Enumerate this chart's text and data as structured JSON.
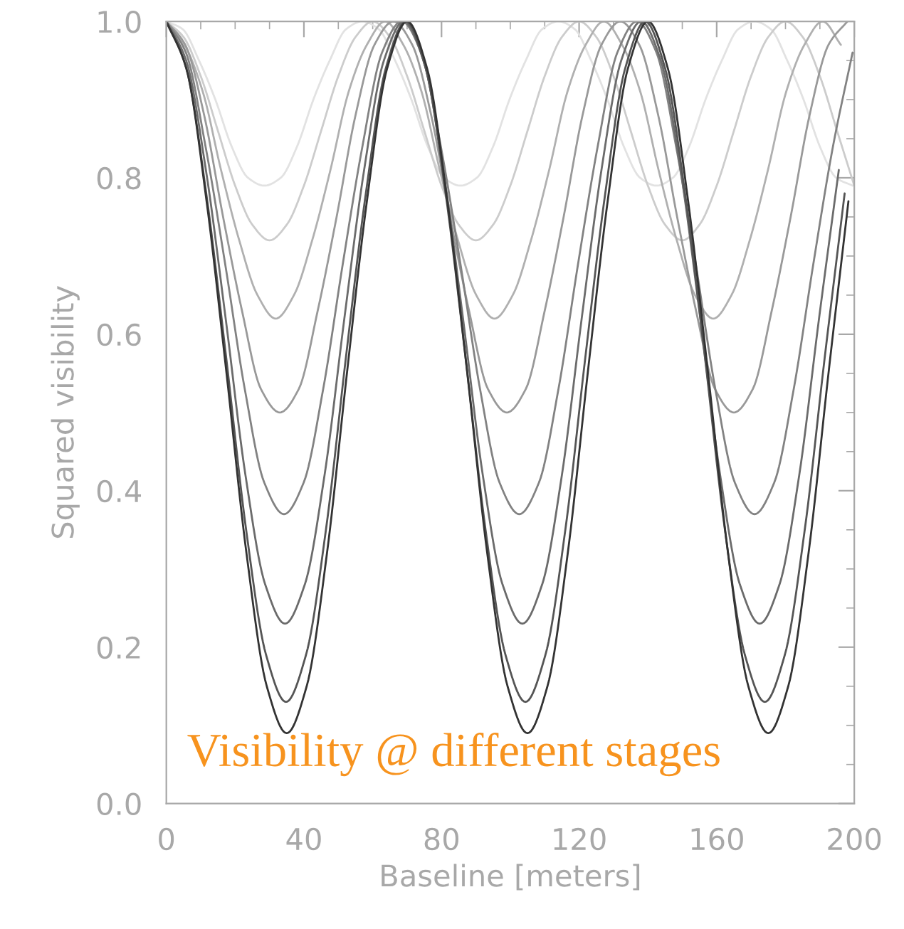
{
  "chart_data": {
    "type": "line",
    "xlabel": "Baseline [meters]",
    "ylabel": "Squared visibility",
    "annotations": [
      "Visibility @ different stages"
    ],
    "xlim": [
      0,
      200
    ],
    "ylim": [
      0,
      1.0
    ],
    "xticks": [
      0,
      40,
      80,
      120,
      160,
      200
    ],
    "yticks": [
      {
        "value": 0,
        "label": "0.0"
      },
      {
        "value": 0.2,
        "label": "0.2"
      },
      {
        "value": 0.4,
        "label": "0.4"
      },
      {
        "value": 0.6,
        "label": "0.6"
      },
      {
        "value": 0.8,
        "label": "0.8"
      },
      {
        "value": 1.0,
        "label": "1.0"
      }
    ],
    "grid": false,
    "marker": "none",
    "line_style": "solid",
    "series": [
      {
        "color": "#e2e2e2",
        "x": [
          0,
          4.75,
          9.5,
          14.25,
          19,
          23.75,
          28.5,
          33.25,
          38,
          42.75,
          47.5,
          52.25,
          57,
          61.75,
          66.5,
          71.25,
          76,
          80.75,
          85.5,
          90.25,
          95,
          99.75,
          104.5,
          109.25,
          114,
          118.75,
          123.5,
          128.25,
          133,
          137.75,
          142.5,
          147.25,
          152,
          156.75,
          161.5,
          166.25,
          171,
          175.75,
          180.5,
          185.25,
          190,
          194.75,
          199.5
        ],
        "values": [
          1,
          0.99,
          0.95,
          0.9,
          0.84,
          0.8,
          0.79,
          0.8,
          0.84,
          0.9,
          0.95,
          0.99,
          1,
          0.99,
          0.95,
          0.9,
          0.84,
          0.8,
          0.79,
          0.8,
          0.84,
          0.9,
          0.95,
          0.99,
          1,
          0.99,
          0.95,
          0.9,
          0.84,
          0.8,
          0.79,
          0.8,
          0.84,
          0.9,
          0.95,
          0.99,
          1,
          0.99,
          0.95,
          0.9,
          0.84,
          0.8,
          0.79
        ]
      },
      {
        "color": "#cccccc",
        "x": [
          0,
          5,
          10,
          15,
          20,
          25,
          30,
          35,
          40,
          45,
          50,
          55,
          60,
          65,
          70,
          75,
          80,
          85,
          90,
          95,
          100,
          105,
          110,
          115,
          120,
          125,
          130,
          135,
          140,
          145,
          150,
          155,
          160,
          165,
          170,
          175,
          180,
          185,
          190,
          195,
          200
        ],
        "values": [
          1,
          0.98,
          0.93,
          0.86,
          0.79,
          0.74,
          0.72,
          0.74,
          0.79,
          0.86,
          0.93,
          0.98,
          1,
          0.98,
          0.93,
          0.86,
          0.79,
          0.74,
          0.72,
          0.74,
          0.79,
          0.86,
          0.93,
          0.98,
          1,
          0.98,
          0.93,
          0.86,
          0.79,
          0.74,
          0.72,
          0.74,
          0.79,
          0.86,
          0.93,
          0.98,
          1,
          0.98,
          0.93,
          0.86,
          0.79
        ]
      },
      {
        "color": "#b0b0b0",
        "x": [
          0,
          5.3,
          10.6,
          15.9,
          21.2,
          26.5,
          31.8,
          37.1,
          42.4,
          47.7,
          53,
          58.3,
          63.6,
          68.9,
          74.2,
          79.5,
          84.8,
          90.1,
          95.4,
          100.7,
          106,
          111.3,
          116.6,
          121.9,
          127.2,
          132.5,
          137.8,
          143.1,
          148.4,
          153.7,
          159,
          164.3,
          169.6,
          174.9,
          180.2,
          185.5,
          190.8,
          196.1
        ],
        "values": [
          1,
          0.97,
          0.91,
          0.81,
          0.72,
          0.65,
          0.62,
          0.65,
          0.72,
          0.81,
          0.91,
          0.97,
          1,
          0.97,
          0.91,
          0.81,
          0.72,
          0.65,
          0.62,
          0.65,
          0.72,
          0.81,
          0.91,
          0.97,
          1,
          0.97,
          0.91,
          0.81,
          0.72,
          0.65,
          0.62,
          0.65,
          0.72,
          0.81,
          0.91,
          0.97,
          1,
          0.97
        ]
      },
      {
        "color": "#999999",
        "x": [
          0,
          5.5,
          11,
          16.5,
          22,
          27.5,
          33,
          38.5,
          44,
          49.5,
          55,
          60.5,
          66,
          71.5,
          77,
          82.5,
          88,
          93.5,
          99,
          104.5,
          110,
          115.5,
          121,
          126.5,
          132,
          137.5,
          143,
          148.5,
          154,
          159.5,
          165,
          170.5,
          176,
          181.5,
          187,
          192.5,
          198
        ],
        "values": [
          1,
          0.97,
          0.88,
          0.75,
          0.63,
          0.53,
          0.5,
          0.53,
          0.63,
          0.75,
          0.88,
          0.97,
          1,
          0.97,
          0.88,
          0.75,
          0.63,
          0.53,
          0.5,
          0.53,
          0.63,
          0.75,
          0.88,
          0.97,
          1,
          0.97,
          0.88,
          0.75,
          0.63,
          0.53,
          0.5,
          0.53,
          0.63,
          0.75,
          0.88,
          0.97,
          1
        ]
      },
      {
        "color": "#828282",
        "x": [
          0,
          5.7,
          11.4,
          17.1,
          22.8,
          28.5,
          34.2,
          39.9,
          45.6,
          51.3,
          57,
          62.7,
          68.4,
          74.1,
          79.8,
          85.5,
          91.2,
          96.9,
          102.6,
          108.3,
          114,
          119.7,
          125.4,
          131.1,
          136.8,
          142.5,
          148.2,
          153.9,
          159.6,
          165.3,
          171,
          176.7,
          182.4,
          188.1,
          193.8,
          199.5
        ],
        "values": [
          1,
          0.96,
          0.84,
          0.69,
          0.53,
          0.41,
          0.37,
          0.41,
          0.53,
          0.69,
          0.84,
          0.96,
          1,
          0.96,
          0.84,
          0.69,
          0.53,
          0.41,
          0.37,
          0.41,
          0.53,
          0.69,
          0.84,
          0.96,
          1,
          0.96,
          0.84,
          0.69,
          0.53,
          0.41,
          0.37,
          0.41,
          0.53,
          0.69,
          0.84,
          0.96
        ]
      },
      {
        "color": "#6b6b6b",
        "x": [
          0,
          5.75,
          11.5,
          17.25,
          23,
          28.75,
          34.5,
          40.25,
          46,
          51.75,
          57.5,
          63.25,
          69,
          74.75,
          80.5,
          86.25,
          92,
          97.75,
          103.5,
          109.25,
          115,
          120.75,
          126.5,
          132.25,
          138,
          143.75,
          149.5,
          155.25,
          161,
          166.75,
          172.5,
          178.25,
          184,
          189.75,
          195.5
        ],
        "values": [
          1,
          0.95,
          0.81,
          0.62,
          0.42,
          0.28,
          0.23,
          0.28,
          0.42,
          0.62,
          0.81,
          0.95,
          1,
          0.95,
          0.81,
          0.62,
          0.42,
          0.28,
          0.23,
          0.28,
          0.42,
          0.62,
          0.81,
          0.95,
          1,
          0.95,
          0.81,
          0.62,
          0.42,
          0.28,
          0.23,
          0.28,
          0.42,
          0.62,
          0.81
        ]
      },
      {
        "color": "#555555",
        "x": [
          0,
          5.8,
          11.6,
          17.4,
          23.2,
          29,
          34.8,
          40.6,
          46.4,
          52.2,
          58,
          63.8,
          69.6,
          75.4,
          81.2,
          87,
          92.8,
          98.6,
          104.4,
          110.2,
          116,
          121.8,
          127.6,
          133.4,
          139.2,
          145,
          150.8,
          156.6,
          162.4,
          168.2,
          174,
          179.8,
          185.6,
          191.4,
          197.2
        ],
        "values": [
          1,
          0.94,
          0.78,
          0.57,
          0.35,
          0.19,
          0.13,
          0.19,
          0.35,
          0.57,
          0.78,
          0.94,
          1,
          0.94,
          0.78,
          0.57,
          0.35,
          0.19,
          0.13,
          0.19,
          0.35,
          0.57,
          0.78,
          0.94,
          1,
          0.94,
          0.78,
          0.57,
          0.35,
          0.19,
          0.13,
          0.19,
          0.35,
          0.57,
          0.78
        ]
      },
      {
        "color": "#333333",
        "x": [
          0,
          5.8,
          11.7,
          17.5,
          23.3,
          29.2,
          35,
          40.8,
          46.7,
          52.5,
          58.3,
          64.2,
          70,
          75.8,
          81.7,
          87.5,
          93.3,
          99.2,
          105,
          110.8,
          116.7,
          122.5,
          128.3,
          134.2,
          140,
          145.8,
          151.7,
          157.5,
          163.3,
          169.2,
          175,
          180.8,
          186.7,
          192.5,
          198.3
        ],
        "values": [
          1,
          0.94,
          0.77,
          0.55,
          0.32,
          0.15,
          0.09,
          0.15,
          0.32,
          0.55,
          0.77,
          0.94,
          1,
          0.94,
          0.77,
          0.55,
          0.32,
          0.15,
          0.09,
          0.15,
          0.32,
          0.55,
          0.77,
          0.94,
          1,
          0.94,
          0.77,
          0.55,
          0.32,
          0.15,
          0.09,
          0.15,
          0.32,
          0.55,
          0.77
        ]
      }
    ]
  }
}
